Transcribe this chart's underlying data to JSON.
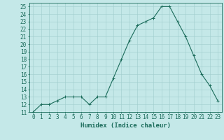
{
  "x": [
    0,
    1,
    2,
    3,
    4,
    5,
    6,
    7,
    8,
    9,
    10,
    11,
    12,
    13,
    14,
    15,
    16,
    17,
    18,
    19,
    20,
    21,
    22,
    23
  ],
  "y": [
    11,
    12,
    12,
    12.5,
    13,
    13,
    13,
    12,
    13,
    13,
    15.5,
    18,
    20.5,
    22.5,
    23,
    23.5,
    25,
    25,
    23,
    21,
    18.5,
    16,
    14.5,
    12.5
  ],
  "line_color": "#1a6b5a",
  "marker": "+",
  "marker_size": 3,
  "marker_lw": 0.7,
  "line_width": 0.8,
  "bg_color": "#c4e8e8",
  "grid_color": "#a0cccc",
  "xlabel": "Humidex (Indice chaleur)",
  "xlim": [
    -0.5,
    23.5
  ],
  "ylim": [
    11,
    25.5
  ],
  "yticks": [
    11,
    12,
    13,
    14,
    15,
    16,
    17,
    18,
    19,
    20,
    21,
    22,
    23,
    24,
    25
  ],
  "xticks": [
    0,
    1,
    2,
    3,
    4,
    5,
    6,
    7,
    8,
    9,
    10,
    11,
    12,
    13,
    14,
    15,
    16,
    17,
    18,
    19,
    20,
    21,
    22,
    23
  ],
  "xtick_labels": [
    "0",
    "1",
    "2",
    "3",
    "4",
    "5",
    "6",
    "7",
    "8",
    "9",
    "10",
    "11",
    "12",
    "13",
    "14",
    "15",
    "16",
    "17",
    "18",
    "19",
    "20",
    "21",
    "22",
    "23"
  ],
  "ytick_labels": [
    "11",
    "12",
    "13",
    "14",
    "15",
    "16",
    "17",
    "18",
    "19",
    "20",
    "21",
    "22",
    "23",
    "24",
    "25"
  ],
  "tick_color": "#1a6b5a",
  "tick_fontsize": 5.5,
  "xlabel_fontsize": 6.5,
  "spine_color": "#1a6b5a"
}
